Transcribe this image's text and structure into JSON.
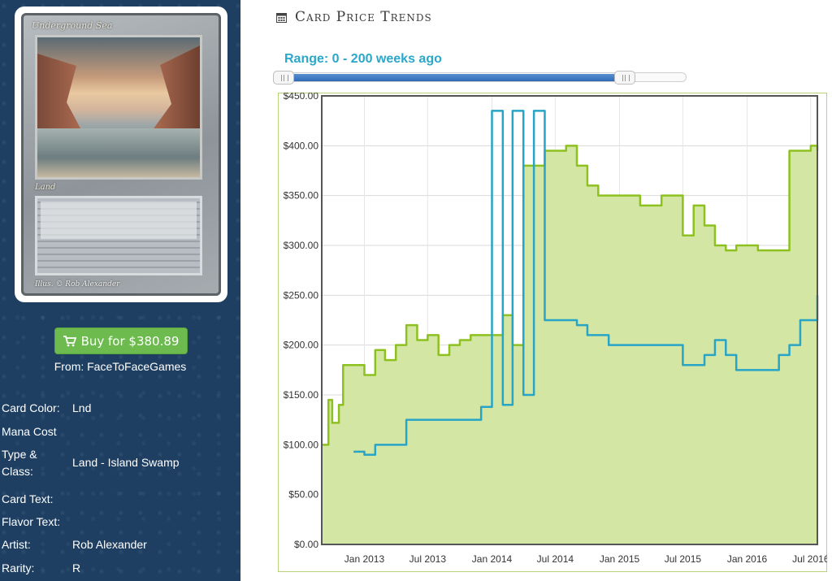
{
  "card": {
    "title": "Underground Sea",
    "type_line": "Land",
    "illus": "Illus. © Rob Alexander"
  },
  "buy": {
    "label": "Buy for $380.89",
    "icon": "cart-icon",
    "color": "#6dba4f"
  },
  "from": "From: FaceToFaceGames",
  "attributes": [
    {
      "label": "Card Color:",
      "value": "Lnd"
    },
    {
      "label": "Mana Cost",
      "value": ""
    },
    {
      "label": "Type & Class:",
      "value": "Land - Island Swamp"
    },
    {
      "label": "Card Text:",
      "value": ""
    },
    {
      "label": "Flavor Text:",
      "value": ""
    },
    {
      "label": "Artist:",
      "value": "Rob Alexander"
    },
    {
      "label": "Rarity:",
      "value": "R"
    }
  ],
  "header": {
    "title": "Card Price Trends",
    "icon": "calendar-icon"
  },
  "range": {
    "label": "Range: 0 - 200 weeks ago",
    "start_fraction": 0.0,
    "end_fraction": 0.87
  },
  "colors": {
    "sidebar": "#1e3f62",
    "green": "#8cc11f",
    "green_fill": "#d4e6a3",
    "blue": "#27a4c6"
  },
  "chart_data": {
    "type": "area",
    "title": "",
    "xlabel": "",
    "ylabel": "",
    "ylim": [
      0,
      450
    ],
    "y_ticks": [
      "$0.00",
      "$50.00",
      "$100.00",
      "$150.00",
      "$200.00",
      "$250.00",
      "$300.00",
      "$350.00",
      "$400.00",
      "$450.00"
    ],
    "x_ticks": [
      "Jan 2013",
      "Jul 2013",
      "Jan 2014",
      "Jul 2014",
      "Jan 2015",
      "Jul 2015",
      "Jan 2016",
      "Jul 2016"
    ],
    "grid": true,
    "series": [
      {
        "color": "#8cc11f",
        "fill": true,
        "x": [
          "2012-09-01",
          "2012-09-20",
          "2012-10-01",
          "2012-10-20",
          "2012-11-01",
          "2012-12-01",
          "2013-01-01",
          "2013-02-01",
          "2013-03-01",
          "2013-04-01",
          "2013-05-01",
          "2013-06-01",
          "2013-07-01",
          "2013-08-01",
          "2013-09-01",
          "2013-10-01",
          "2013-11-01",
          "2013-12-01",
          "2014-01-01",
          "2014-02-01",
          "2014-03-01",
          "2014-04-01",
          "2014-05-01",
          "2014-06-01",
          "2014-07-01",
          "2014-08-01",
          "2014-09-01",
          "2014-10-01",
          "2014-11-01",
          "2014-12-01",
          "2015-01-01",
          "2015-02-01",
          "2015-03-01",
          "2015-04-01",
          "2015-05-01",
          "2015-06-01",
          "2015-07-01",
          "2015-08-01",
          "2015-09-01",
          "2015-10-01",
          "2015-11-01",
          "2015-12-01",
          "2016-01-01",
          "2016-02-01",
          "2016-03-01",
          "2016-04-01",
          "2016-05-01",
          "2016-06-01",
          "2016-07-01",
          "2016-07-20"
        ],
        "values": [
          100,
          145,
          122,
          140,
          180,
          180,
          170,
          195,
          185,
          200,
          220,
          205,
          210,
          190,
          200,
          205,
          210,
          210,
          210,
          230,
          200,
          380,
          380,
          395,
          395,
          400,
          380,
          360,
          350,
          350,
          350,
          350,
          340,
          340,
          350,
          350,
          310,
          340,
          320,
          300,
          295,
          300,
          300,
          295,
          295,
          295,
          395,
          395,
          400,
          395
        ]
      },
      {
        "color": "#27a4c6",
        "fill": false,
        "x": [
          "2012-12-01",
          "2013-01-01",
          "2013-02-01",
          "2013-03-01",
          "2013-04-01",
          "2013-05-01",
          "2013-06-01",
          "2013-07-01",
          "2013-08-01",
          "2013-09-01",
          "2013-10-01",
          "2013-11-01",
          "2013-12-01",
          "2014-01-01",
          "2014-02-01",
          "2014-03-01",
          "2014-04-01",
          "2014-05-01",
          "2014-06-01",
          "2014-07-01",
          "2014-08-01",
          "2014-09-01",
          "2014-10-01",
          "2014-11-01",
          "2014-12-01",
          "2015-01-01",
          "2015-02-01",
          "2015-03-01",
          "2015-04-01",
          "2015-05-01",
          "2015-06-01",
          "2015-07-01",
          "2015-08-01",
          "2015-09-01",
          "2015-10-01",
          "2015-11-01",
          "2015-12-01",
          "2016-01-01",
          "2016-02-01",
          "2016-03-01",
          "2016-04-01",
          "2016-05-01",
          "2016-06-01",
          "2016-07-01",
          "2016-07-20"
        ],
        "values": [
          93,
          90,
          100,
          100,
          100,
          125,
          125,
          125,
          125,
          125,
          125,
          125,
          138,
          435,
          140,
          435,
          150,
          435,
          225,
          225,
          225,
          220,
          210,
          210,
          200,
          200,
          200,
          200,
          200,
          200,
          200,
          180,
          180,
          190,
          205,
          190,
          175,
          175,
          175,
          175,
          190,
          200,
          225,
          225,
          250
        ]
      }
    ]
  }
}
